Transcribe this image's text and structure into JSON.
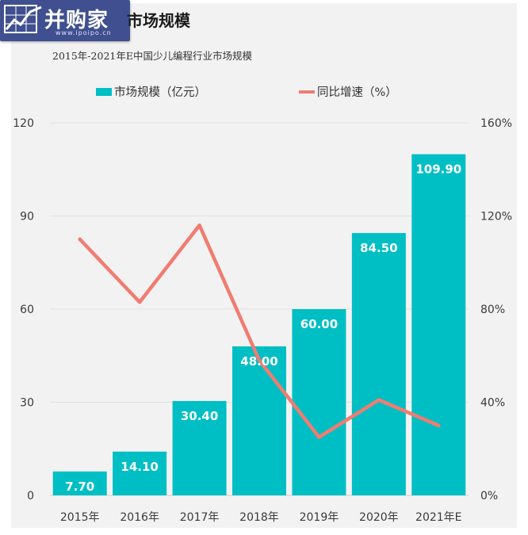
{
  "header": {
    "logo_text": "并购家",
    "logo_url": "www.ipoipo.cn",
    "title": "市场规模",
    "subtitle": "2015年-2021年E中国少儿编程行业市场规模"
  },
  "colors": {
    "bar": "#00bfc4",
    "line": "#f07c72",
    "logo_bg": "#3f4f8f"
  },
  "chart_data": {
    "type": "bar",
    "categories": [
      "2015年",
      "2016年",
      "2017年",
      "2018年",
      "2019年",
      "2020年",
      "2021年E"
    ],
    "series": [
      {
        "name": "市场规模（亿元）",
        "type": "bar",
        "axis": "left",
        "values": [
          7.7,
          14.1,
          30.4,
          48.0,
          60.0,
          84.5,
          109.9
        ],
        "labels": [
          "7.70",
          "14.10",
          "30.40",
          "48.00",
          "60.00",
          "84.50",
          "109.90"
        ]
      },
      {
        "name": "同比增速（%）",
        "type": "line",
        "axis": "right",
        "values": [
          110,
          83,
          116,
          58,
          25,
          41,
          30
        ]
      }
    ],
    "y_left": {
      "ylim": [
        0,
        120
      ],
      "ticks": [
        "0",
        "30",
        "60",
        "90",
        "120"
      ]
    },
    "y_right": {
      "ylim": [
        0,
        160
      ],
      "ticks": [
        "0%",
        "40%",
        "80%",
        "120%",
        "160%"
      ]
    },
    "legend_position": "top",
    "grid": true
  }
}
